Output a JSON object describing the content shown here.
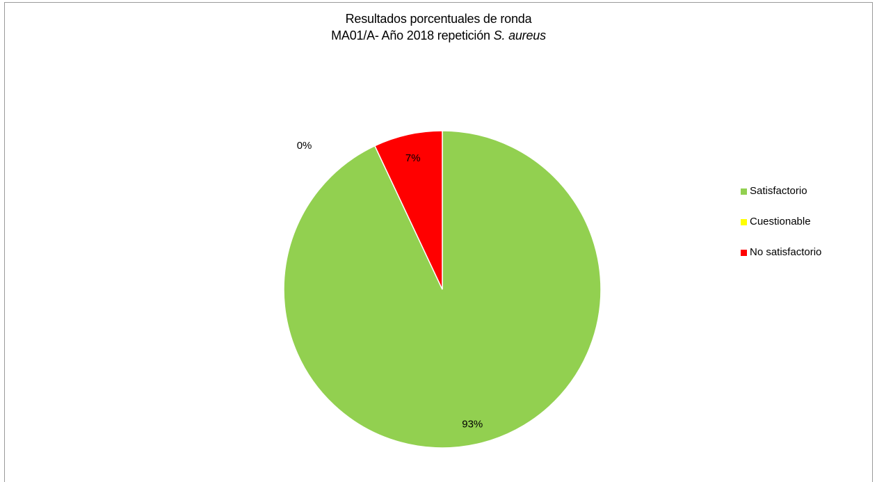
{
  "chart_data": {
    "type": "pie",
    "title_line1": "Resultados  porcentuales de ronda",
    "title_line2_prefix": "MA01/A- Año 2018 repetición ",
    "title_line2_italic": "S. aureus",
    "categories": [
      "Satisfactorio",
      "Cuestionable",
      "No satisfactorio"
    ],
    "values": [
      93,
      0,
      7
    ],
    "data_labels": [
      "93%",
      "0%",
      "7%"
    ],
    "colors": [
      "#92d050",
      "#ffff00",
      "#ff0000"
    ],
    "legend_position": "right"
  }
}
